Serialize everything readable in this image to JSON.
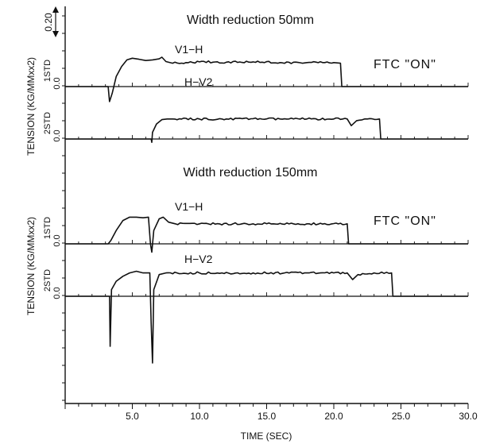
{
  "chart_data": {
    "type": "line",
    "xlabel": "TIME (SEC)",
    "x_ticks": [
      "5.0",
      "10.0",
      "15.0",
      "20.0",
      "25.0",
      "30.0"
    ],
    "xlim": [
      0,
      30
    ],
    "ylabel": "TENSION (KG/MMxx2)",
    "scale_label": "0.20",
    "panels": [
      {
        "title": "Width reduction 50mm",
        "annotation": "FTC \"ON\"",
        "channels": [
          {
            "label": "1STD",
            "zero_label": "0.0",
            "series": {
              "name": "V1−H",
              "points": [
                [
                  0.0,
                  0.0
                ],
                [
                  3.2,
                  0.0
                ],
                [
                  3.3,
                  -0.045
                ],
                [
                  3.5,
                  -0.02
                ],
                [
                  3.8,
                  0.03
                ],
                [
                  4.2,
                  0.06
                ],
                [
                  4.6,
                  0.08
                ],
                [
                  5.0,
                  0.085
                ],
                [
                  5.5,
                  0.082
                ],
                [
                  6.0,
                  0.078
                ],
                [
                  6.5,
                  0.08
                ],
                [
                  7.0,
                  0.083
                ],
                [
                  7.2,
                  0.088
                ],
                [
                  7.5,
                  0.075
                ],
                [
                  8.0,
                  0.07
                ],
                [
                  9.0,
                  0.072
                ],
                [
                  10.0,
                  0.074
                ],
                [
                  12.0,
                  0.073
                ],
                [
                  14.0,
                  0.074
                ],
                [
                  16.0,
                  0.072
                ],
                [
                  18.0,
                  0.072
                ],
                [
                  20.0,
                  0.072
                ],
                [
                  20.5,
                  0.07
                ],
                [
                  20.6,
                  0.0
                ],
                [
                  30.0,
                  0.0
                ]
              ]
            }
          },
          {
            "label": "2STD",
            "zero_label": "0.0",
            "series": {
              "name": "H−V2",
              "points": [
                [
                  0.0,
                  0.0
                ],
                [
                  6.4,
                  0.0
                ],
                [
                  6.45,
                  -0.01
                ],
                [
                  6.5,
                  0.02
                ],
                [
                  6.8,
                  0.045
                ],
                [
                  7.2,
                  0.058
                ],
                [
                  7.6,
                  0.06
                ],
                [
                  8.0,
                  0.06
                ],
                [
                  10.0,
                  0.06
                ],
                [
                  12.0,
                  0.06
                ],
                [
                  14.0,
                  0.061
                ],
                [
                  16.0,
                  0.06
                ],
                [
                  18.0,
                  0.06
                ],
                [
                  20.0,
                  0.06
                ],
                [
                  21.0,
                  0.06
                ],
                [
                  21.3,
                  0.04
                ],
                [
                  21.7,
                  0.055
                ],
                [
                  22.5,
                  0.06
                ],
                [
                  23.4,
                  0.06
                ],
                [
                  23.5,
                  0.0
                ],
                [
                  30.0,
                  0.0
                ]
              ]
            }
          }
        ]
      },
      {
        "title": "Width reduction 150mm",
        "annotation": "FTC \"ON\"",
        "channels": [
          {
            "label": "1STD",
            "zero_label": "0.0",
            "series": {
              "name": "V1−H",
              "points": [
                [
                  0.0,
                  0.0
                ],
                [
                  3.2,
                  0.0
                ],
                [
                  3.4,
                  0.01
                ],
                [
                  3.8,
                  0.04
                ],
                [
                  4.3,
                  0.07
                ],
                [
                  4.8,
                  0.08
                ],
                [
                  5.3,
                  0.08
                ],
                [
                  5.8,
                  0.078
                ],
                [
                  6.2,
                  0.08
                ],
                [
                  6.35,
                  0.0
                ],
                [
                  6.45,
                  -0.025
                ],
                [
                  6.6,
                  0.04
                ],
                [
                  7.0,
                  0.075
                ],
                [
                  7.3,
                  0.08
                ],
                [
                  7.7,
                  0.065
                ],
                [
                  8.2,
                  0.06
                ],
                [
                  10.0,
                  0.06
                ],
                [
                  14.0,
                  0.06
                ],
                [
                  18.0,
                  0.06
                ],
                [
                  21.0,
                  0.06
                ],
                [
                  21.1,
                  0.0
                ],
                [
                  30.0,
                  0.0
                ]
              ]
            }
          },
          {
            "label": "2STD",
            "zero_label": "0.0",
            "series": {
              "name": "H−V2",
              "points": [
                [
                  0.0,
                  0.0
                ],
                [
                  3.3,
                  0.0
                ],
                [
                  3.35,
                  -0.15
                ],
                [
                  3.45,
                  0.02
                ],
                [
                  3.8,
                  0.045
                ],
                [
                  4.3,
                  0.06
                ],
                [
                  4.8,
                  0.07
                ],
                [
                  5.3,
                  0.075
                ],
                [
                  5.8,
                  0.07
                ],
                [
                  6.3,
                  0.07
                ],
                [
                  6.35,
                  0.0
                ],
                [
                  6.4,
                  -0.08
                ],
                [
                  6.5,
                  -0.2
                ],
                [
                  6.6,
                  0.02
                ],
                [
                  7.0,
                  0.065
                ],
                [
                  7.5,
                  0.07
                ],
                [
                  10.0,
                  0.07
                ],
                [
                  14.0,
                  0.07
                ],
                [
                  18.0,
                  0.07
                ],
                [
                  21.0,
                  0.07
                ],
                [
                  21.4,
                  0.05
                ],
                [
                  21.8,
                  0.065
                ],
                [
                  23.0,
                  0.07
                ],
                [
                  24.3,
                  0.07
                ],
                [
                  24.4,
                  0.0
                ],
                [
                  30.0,
                  0.0
                ]
              ]
            }
          }
        ]
      }
    ]
  }
}
